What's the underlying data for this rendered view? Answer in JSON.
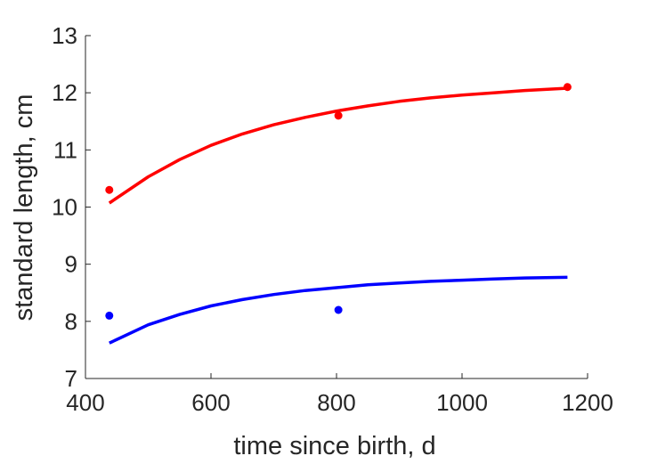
{
  "chart_data": {
    "type": "line",
    "xlabel": "time since birth, d",
    "ylabel": "standard length, cm",
    "xlim": [
      400,
      1200
    ],
    "ylim": [
      7,
      13
    ],
    "xticks": [
      "400",
      "600",
      "800",
      "1000",
      "1200"
    ],
    "yticks": [
      "7",
      "8",
      "9",
      "10",
      "11",
      "12",
      "13"
    ],
    "grid": false,
    "legend": "none",
    "series": [
      {
        "color": "#ff0000",
        "points": {
          "x": [
            438,
            803,
            1168
          ],
          "y": [
            10.3,
            11.6,
            12.1
          ]
        },
        "curve": {
          "x": [
            438,
            500,
            550,
            600,
            650,
            700,
            750,
            800,
            850,
            900,
            950,
            1000,
            1050,
            1100,
            1168
          ],
          "y": [
            10.07,
            10.53,
            10.83,
            11.08,
            11.28,
            11.44,
            11.57,
            11.68,
            11.77,
            11.85,
            11.91,
            11.96,
            12.0,
            12.04,
            12.08
          ]
        }
      },
      {
        "color": "#0000ff",
        "points": {
          "x": [
            438,
            803
          ],
          "y": [
            8.1,
            8.2
          ]
        },
        "curve": {
          "x": [
            438,
            500,
            550,
            600,
            650,
            700,
            750,
            800,
            850,
            900,
            950,
            1000,
            1050,
            1100,
            1168
          ],
          "y": [
            7.62,
            7.94,
            8.12,
            8.27,
            8.38,
            8.47,
            8.54,
            8.59,
            8.64,
            8.67,
            8.7,
            8.72,
            8.74,
            8.76,
            8.77
          ]
        }
      }
    ]
  }
}
